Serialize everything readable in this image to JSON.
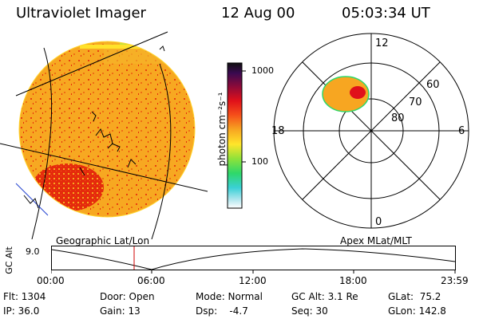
{
  "header": {
    "instrument": "Ultraviolet Imager",
    "date": "12 Aug 00",
    "time": "05:03:34 UT"
  },
  "colorbar": {
    "unit_label": "photon cm⁻²s⁻¹",
    "ticks": [
      "1000",
      "100"
    ]
  },
  "polar": {
    "mlt_labels": [
      "12",
      "18",
      "6",
      "0"
    ],
    "lat_labels": [
      "60",
      "70",
      "80"
    ]
  },
  "timeline": {
    "left_label": "Geographic Lat/Lon",
    "right_label": "Apex MLat/MLT",
    "axis_title": "GC Alt",
    "y_value": "9.0",
    "x_ticks": [
      "00:00",
      "06:00",
      "12:00",
      "18:00",
      "23:59"
    ],
    "current_time_color": "#d00000"
  },
  "footer": {
    "flt": "Flt: 1304",
    "ip": "IP: 36.0",
    "door": "Door: Open",
    "gain": "Gain: 13",
    "mode": "Mode: Normal",
    "dsp": "Dsp:    -4.7",
    "gcalt": "GC Alt: 3.1 Re",
    "seq": "Seq: 30",
    "glat": "GLat:  75.2",
    "glon": "GLon: 142.8"
  }
}
